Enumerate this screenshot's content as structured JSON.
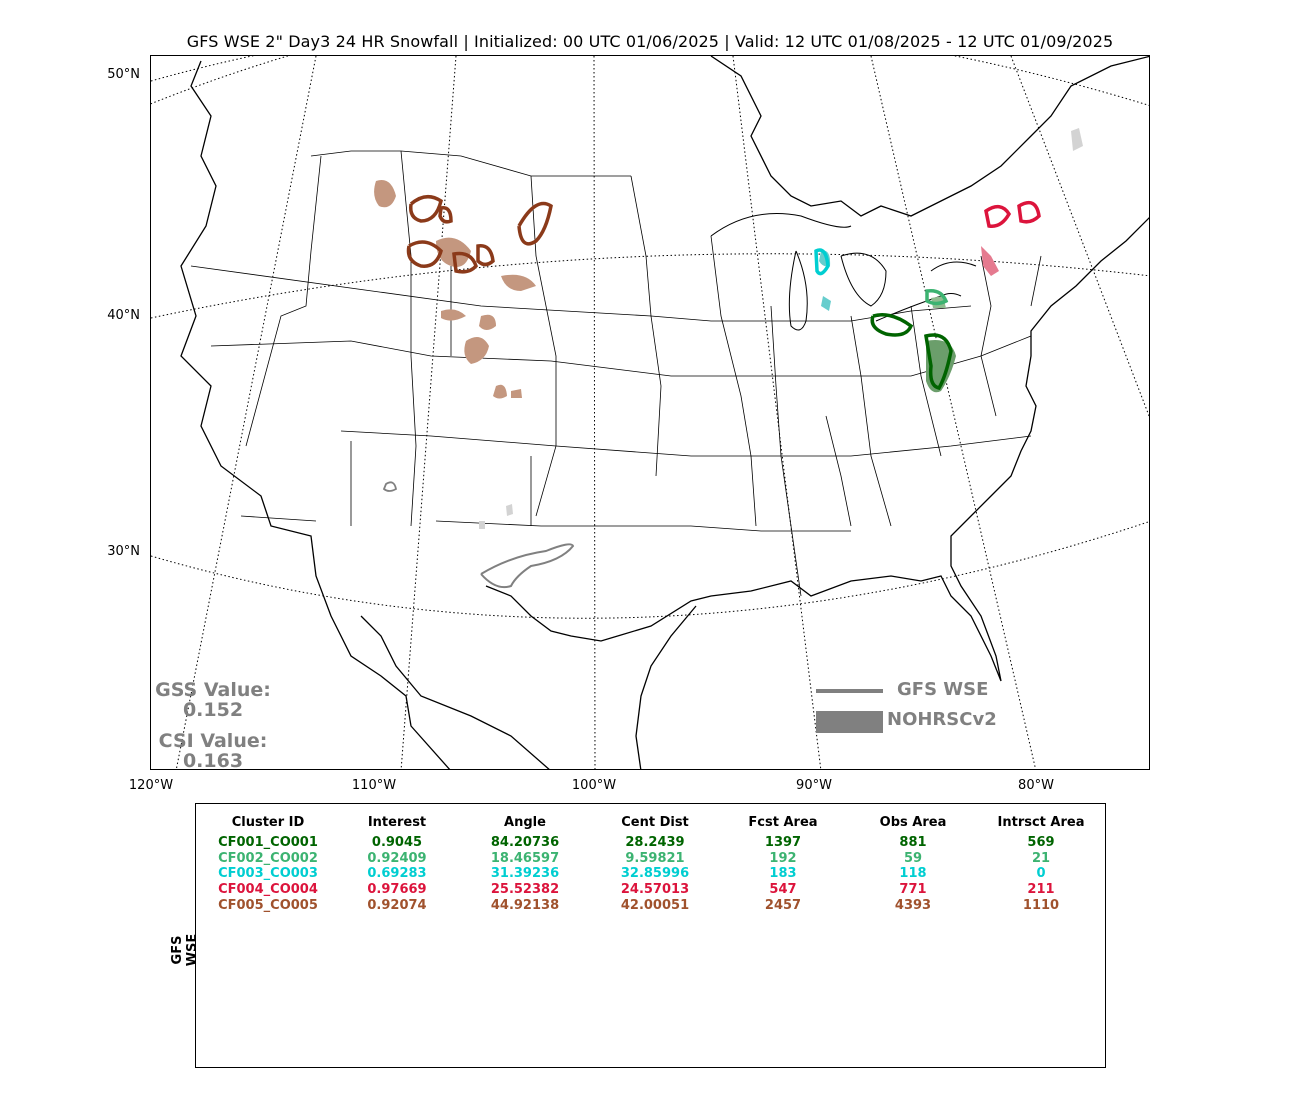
{
  "title": "GFS WSE 2\" Day3 24 HR Snowfall | Initialized: 00 UTC 01/06/2025 | Valid: 12 UTC 01/08/2025 - 12 UTC 01/09/2025",
  "lat_labels": [
    "50°N",
    "40°N",
    "30°N"
  ],
  "lon_labels": [
    "120°W",
    "110°W",
    "100°W",
    "90°W",
    "80°W"
  ],
  "stats": {
    "gss_label": "GSS Value:",
    "gss_value": "0.152",
    "csi_label": "CSI Value:",
    "csi_value": "0.163"
  },
  "legend": {
    "forecast": "GFS WSE",
    "observed": "NOHRSCv2",
    "forecast_color": "#808080",
    "observed_color": "#808080"
  },
  "table": {
    "row_label": "GFS WSE",
    "headers": [
      "Cluster ID",
      "Interest",
      "Angle",
      "Cent Dist",
      "Fcst Area",
      "Obs Area",
      "Intrsct Area"
    ],
    "rows": [
      {
        "color": "#006400",
        "cells": [
          "CF001_CO001",
          "0.9045",
          "84.20736",
          "28.2439",
          "1397",
          "881",
          "569"
        ]
      },
      {
        "color": "#3CB371",
        "cells": [
          "CF002_CO002",
          "0.92409",
          "18.46597",
          "9.59821",
          "192",
          "59",
          "21"
        ]
      },
      {
        "color": "#00CED1",
        "cells": [
          "CF003_CO003",
          "0.69283",
          "31.39236",
          "32.85996",
          "183",
          "118",
          "0"
        ]
      },
      {
        "color": "#DC143C",
        "cells": [
          "CF004_CO004",
          "0.97669",
          "25.52382",
          "24.57013",
          "547",
          "771",
          "211"
        ]
      },
      {
        "color": "#A0522D",
        "cells": [
          "CF005_CO005",
          "0.92074",
          "44.92138",
          "42.00051",
          "2457",
          "4393",
          "1110"
        ]
      }
    ]
  }
}
